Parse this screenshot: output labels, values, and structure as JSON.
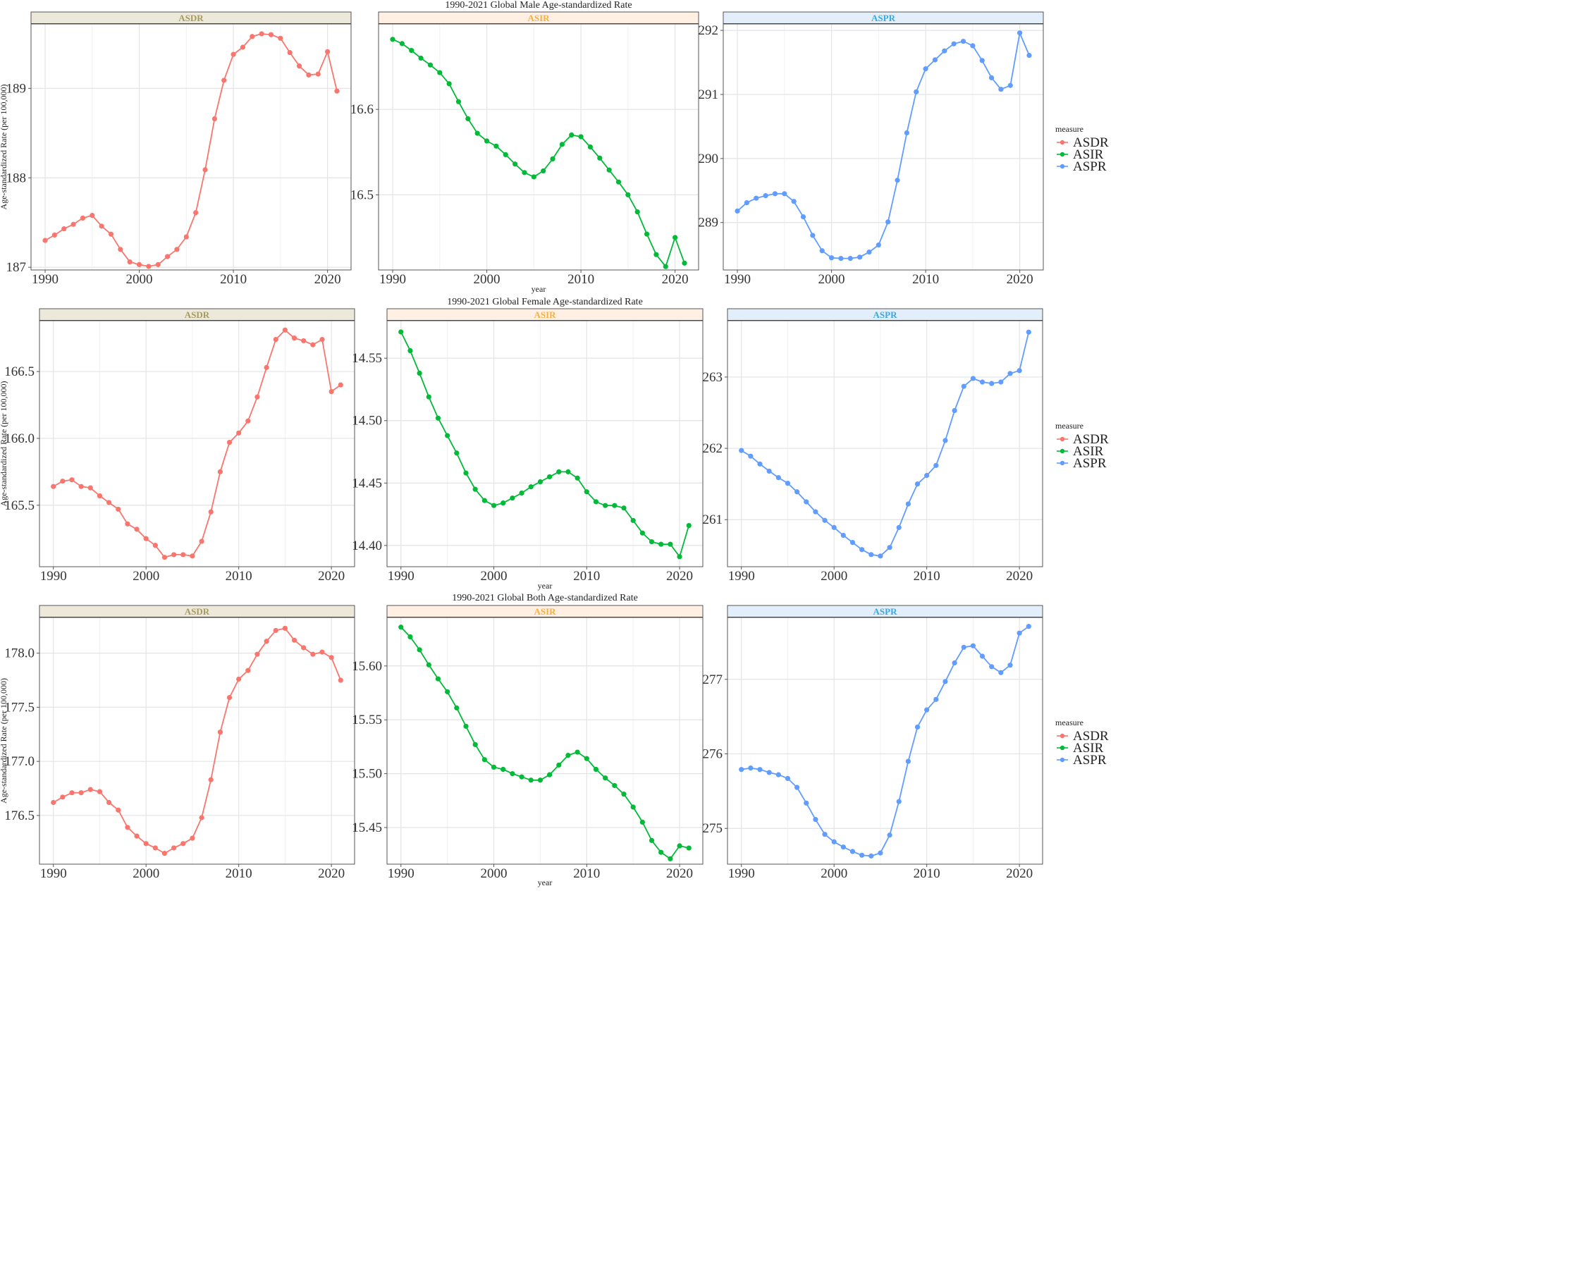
{
  "figure": {
    "rows": [
      {
        "title": "1990-2021 Global Male Age-standardized Rate",
        "ylabel": "Age-standardized Rate (per 100,000)",
        "xlabel": "year",
        "legend_title": "measure",
        "legend_items": [
          "ASDR",
          "ASIR",
          "ASPR"
        ]
      },
      {
        "title": "1990-2021 Global Female Age-standardized Rate",
        "ylabel": "Age-standardized Rate (per 100,000)",
        "xlabel": "year",
        "legend_title": "measure",
        "legend_items": [
          "ASDR",
          "ASIR",
          "ASPR"
        ]
      },
      {
        "title": "1990-2021 Global Both Age-standardized Rate",
        "ylabel": "Age-standardized Rate (per 100,000)",
        "xlabel": "year",
        "legend_title": "measure",
        "legend_items": [
          "ASDR",
          "ASIR",
          "ASPR"
        ]
      }
    ]
  },
  "colors": {
    "ASDR": "#F8766D",
    "ASIR": "#00BA38",
    "ASPR": "#619CFF",
    "strip_ASDR_bg": "#EDE9DA",
    "strip_ASIR_bg": "#FFF0E3",
    "strip_ASPR_bg": "#E3EEFB",
    "strip_ASDR_text": "#A69A5E",
    "strip_ASIR_text": "#F5B041",
    "strip_ASPR_text": "#3AA8E0"
  },
  "chart_data": [
    {
      "type": "line",
      "row": 0,
      "facet": "ASDR",
      "xlabel": "year",
      "x": [
        1990,
        1991,
        1992,
        1993,
        1994,
        1995,
        1996,
        1997,
        1998,
        1999,
        2000,
        2001,
        2002,
        2003,
        2004,
        2005,
        2006,
        2007,
        2008,
        2009,
        2010,
        2011,
        2012,
        2013,
        2014,
        2015,
        2016,
        2017,
        2018,
        2019,
        2020,
        2021
      ],
      "values": [
        187.3,
        187.36,
        187.43,
        187.48,
        187.55,
        187.58,
        187.46,
        187.37,
        187.2,
        187.06,
        187.03,
        187.01,
        187.03,
        187.12,
        187.2,
        187.34,
        187.61,
        188.09,
        188.66,
        189.09,
        189.38,
        189.46,
        189.58,
        189.61,
        189.6,
        189.56,
        189.4,
        189.25,
        189.15,
        189.16,
        189.41,
        188.97
      ],
      "xlim": [
        1988.5,
        2022.5
      ],
      "ylim": [
        186.97,
        189.72
      ],
      "xticks": [
        1990,
        2000,
        2010,
        2020
      ],
      "yticks": [
        187,
        188,
        189
      ],
      "grid": true
    },
    {
      "type": "line",
      "row": 0,
      "facet": "ASIR",
      "xlabel": "year",
      "x": [
        1990,
        1991,
        1992,
        1993,
        1994,
        1995,
        1996,
        1997,
        1998,
        1999,
        2000,
        2001,
        2002,
        2003,
        2004,
        2005,
        2006,
        2007,
        2008,
        2009,
        2010,
        2011,
        2012,
        2013,
        2014,
        2015,
        2016,
        2017,
        2018,
        2019,
        2020,
        2021
      ],
      "values": [
        16.682,
        16.677,
        16.669,
        16.66,
        16.652,
        16.643,
        16.63,
        16.609,
        16.589,
        16.572,
        16.563,
        16.557,
        16.547,
        16.536,
        16.526,
        16.521,
        16.528,
        16.542,
        16.559,
        16.57,
        16.568,
        16.556,
        16.543,
        16.529,
        16.515,
        16.5,
        16.48,
        16.454,
        16.43,
        16.416,
        16.45,
        16.42
      ],
      "xlim": [
        1988.5,
        2022.5
      ],
      "ylim": [
        16.412,
        16.7
      ],
      "xticks": [
        1990,
        2000,
        2010,
        2020
      ],
      "yticks": [
        16.5,
        16.6
      ],
      "grid": true
    },
    {
      "type": "line",
      "row": 0,
      "facet": "ASPR",
      "xlabel": "year",
      "x": [
        1990,
        1991,
        1992,
        1993,
        1994,
        1995,
        1996,
        1997,
        1998,
        1999,
        2000,
        2001,
        2002,
        2003,
        2004,
        2005,
        2006,
        2007,
        2008,
        2009,
        2010,
        2011,
        2012,
        2013,
        2014,
        2015,
        2016,
        2017,
        2018,
        2019,
        2020,
        2021
      ],
      "values": [
        289.18,
        289.31,
        289.38,
        289.42,
        289.45,
        289.45,
        289.33,
        289.09,
        288.8,
        288.56,
        288.45,
        288.44,
        288.44,
        288.46,
        288.54,
        288.65,
        289.01,
        289.66,
        290.4,
        291.04,
        291.4,
        291.54,
        291.68,
        291.79,
        291.83,
        291.76,
        291.53,
        291.26,
        291.08,
        291.14,
        291.96,
        291.61
      ],
      "xlim": [
        1988.5,
        2022.5
      ],
      "ylim": [
        288.26,
        292.1
      ],
      "xticks": [
        1990,
        2000,
        2010,
        2020
      ],
      "yticks": [
        289,
        290,
        291,
        292
      ],
      "grid": true
    },
    {
      "type": "line",
      "row": 1,
      "facet": "ASDR",
      "xlabel": "year",
      "x": [
        1990,
        1991,
        1992,
        1993,
        1994,
        1995,
        1996,
        1997,
        1998,
        1999,
        2000,
        2001,
        2002,
        2003,
        2004,
        2005,
        2006,
        2007,
        2008,
        2009,
        2010,
        2011,
        2012,
        2013,
        2014,
        2015,
        2016,
        2017,
        2018,
        2019,
        2020,
        2021
      ],
      "values": [
        165.64,
        165.68,
        165.69,
        165.64,
        165.63,
        165.57,
        165.52,
        165.47,
        165.36,
        165.32,
        165.25,
        165.2,
        165.11,
        165.13,
        165.13,
        165.12,
        165.23,
        165.45,
        165.75,
        165.97,
        166.04,
        166.13,
        166.31,
        166.53,
        166.74,
        166.81,
        166.75,
        166.73,
        166.7,
        166.74,
        166.35,
        166.4
      ],
      "xlim": [
        1988.5,
        2022.5
      ],
      "ylim": [
        165.04,
        166.88
      ],
      "xticks": [
        1990,
        2000,
        2010,
        2020
      ],
      "yticks": [
        165.5,
        166.0,
        166.5
      ],
      "grid": true
    },
    {
      "type": "line",
      "row": 1,
      "facet": "ASIR",
      "xlabel": "year",
      "x": [
        1990,
        1991,
        1992,
        1993,
        1994,
        1995,
        1996,
        1997,
        1998,
        1999,
        2000,
        2001,
        2002,
        2003,
        2004,
        2005,
        2006,
        2007,
        2008,
        2009,
        2010,
        2011,
        2012,
        2013,
        2014,
        2015,
        2016,
        2017,
        2018,
        2019,
        2020,
        2021
      ],
      "values": [
        14.571,
        14.556,
        14.538,
        14.519,
        14.502,
        14.488,
        14.474,
        14.458,
        14.445,
        14.436,
        14.432,
        14.434,
        14.438,
        14.442,
        14.447,
        14.451,
        14.455,
        14.459,
        14.459,
        14.454,
        14.443,
        14.435,
        14.432,
        14.432,
        14.43,
        14.42,
        14.41,
        14.403,
        14.401,
        14.401,
        14.391,
        14.416
      ],
      "xlim": [
        1988.5,
        2022.5
      ],
      "ylim": [
        14.383,
        14.58
      ],
      "xticks": [
        1990,
        2000,
        2010,
        2020
      ],
      "yticks": [
        14.4,
        14.45,
        14.5,
        14.55
      ],
      "grid": true
    },
    {
      "type": "line",
      "row": 1,
      "facet": "ASPR",
      "xlabel": "year",
      "x": [
        1990,
        1991,
        1992,
        1993,
        1994,
        1995,
        1996,
        1997,
        1998,
        1999,
        2000,
        2001,
        2002,
        2003,
        2004,
        2005,
        2006,
        2007,
        2008,
        2009,
        2010,
        2011,
        2012,
        2013,
        2014,
        2015,
        2016,
        2017,
        2018,
        2019,
        2020,
        2021
      ],
      "values": [
        261.97,
        261.89,
        261.78,
        261.68,
        261.59,
        261.51,
        261.39,
        261.25,
        261.11,
        260.99,
        260.89,
        260.78,
        260.68,
        260.58,
        260.51,
        260.49,
        260.61,
        260.89,
        261.22,
        261.5,
        261.62,
        261.76,
        262.11,
        262.53,
        262.87,
        262.98,
        262.93,
        262.91,
        262.93,
        263.05,
        263.09,
        263.63
      ],
      "xlim": [
        1988.5,
        2022.5
      ],
      "ylim": [
        260.34,
        263.79
      ],
      "xticks": [
        1990,
        2000,
        2010,
        2020
      ],
      "yticks": [
        261,
        262,
        263
      ],
      "grid": true
    },
    {
      "type": "line",
      "row": 2,
      "facet": "ASDR",
      "xlabel": "year",
      "x": [
        1990,
        1991,
        1992,
        1993,
        1994,
        1995,
        1996,
        1997,
        1998,
        1999,
        2000,
        2001,
        2002,
        2003,
        2004,
        2005,
        2006,
        2007,
        2008,
        2009,
        2010,
        2011,
        2012,
        2013,
        2014,
        2015,
        2016,
        2017,
        2018,
        2019,
        2020,
        2021
      ],
      "values": [
        176.62,
        176.67,
        176.71,
        176.71,
        176.74,
        176.72,
        176.62,
        176.55,
        176.39,
        176.31,
        176.24,
        176.2,
        176.15,
        176.2,
        176.24,
        176.29,
        176.48,
        176.83,
        177.27,
        177.59,
        177.76,
        177.84,
        177.99,
        178.11,
        178.21,
        178.23,
        178.12,
        178.05,
        177.99,
        178.01,
        177.96,
        177.75
      ],
      "xlim": [
        1988.5,
        2022.5
      ],
      "ylim": [
        176.05,
        178.33
      ],
      "xticks": [
        1990,
        2000,
        2010,
        2020
      ],
      "yticks": [
        176.5,
        177.0,
        177.5,
        178.0
      ],
      "grid": true
    },
    {
      "type": "line",
      "row": 2,
      "facet": "ASIR",
      "xlabel": "year",
      "x": [
        1990,
        1991,
        1992,
        1993,
        1994,
        1995,
        1996,
        1997,
        1998,
        1999,
        2000,
        2001,
        2002,
        2003,
        2004,
        2005,
        2006,
        2007,
        2008,
        2009,
        2010,
        2011,
        2012,
        2013,
        2014,
        2015,
        2016,
        2017,
        2018,
        2019,
        2020,
        2021
      ],
      "values": [
        15.636,
        15.627,
        15.615,
        15.601,
        15.588,
        15.576,
        15.561,
        15.544,
        15.527,
        15.513,
        15.506,
        15.504,
        15.5,
        15.497,
        15.494,
        15.494,
        15.499,
        15.508,
        15.517,
        15.52,
        15.514,
        15.504,
        15.496,
        15.489,
        15.481,
        15.469,
        15.455,
        15.438,
        15.427,
        15.421,
        15.433,
        15.431
      ],
      "xlim": [
        1988.5,
        2022.5
      ],
      "ylim": [
        15.416,
        15.645
      ],
      "xticks": [
        1990,
        2000,
        2010,
        2020
      ],
      "yticks": [
        15.45,
        15.5,
        15.55,
        15.6
      ],
      "grid": true
    },
    {
      "type": "line",
      "row": 2,
      "facet": "ASPR",
      "xlabel": "year",
      "x": [
        1990,
        1991,
        1992,
        1993,
        1994,
        1995,
        1996,
        1997,
        1998,
        1999,
        2000,
        2001,
        2002,
        2003,
        2004,
        2005,
        2006,
        2007,
        2008,
        2009,
        2010,
        2011,
        2012,
        2013,
        2014,
        2015,
        2016,
        2017,
        2018,
        2019,
        2020,
        2021
      ],
      "values": [
        275.79,
        275.81,
        275.79,
        275.75,
        275.72,
        275.67,
        275.55,
        275.34,
        275.12,
        274.92,
        274.82,
        274.75,
        274.69,
        274.64,
        274.63,
        274.67,
        274.91,
        275.36,
        275.9,
        276.36,
        276.59,
        276.73,
        276.97,
        277.22,
        277.43,
        277.45,
        277.31,
        277.17,
        277.09,
        277.19,
        277.62,
        277.71
      ],
      "xlim": [
        1988.5,
        2022.5
      ],
      "ylim": [
        274.52,
        277.83
      ],
      "xticks": [
        1990,
        2000,
        2010,
        2020
      ],
      "yticks": [
        275,
        276,
        277
      ],
      "grid": true
    }
  ]
}
